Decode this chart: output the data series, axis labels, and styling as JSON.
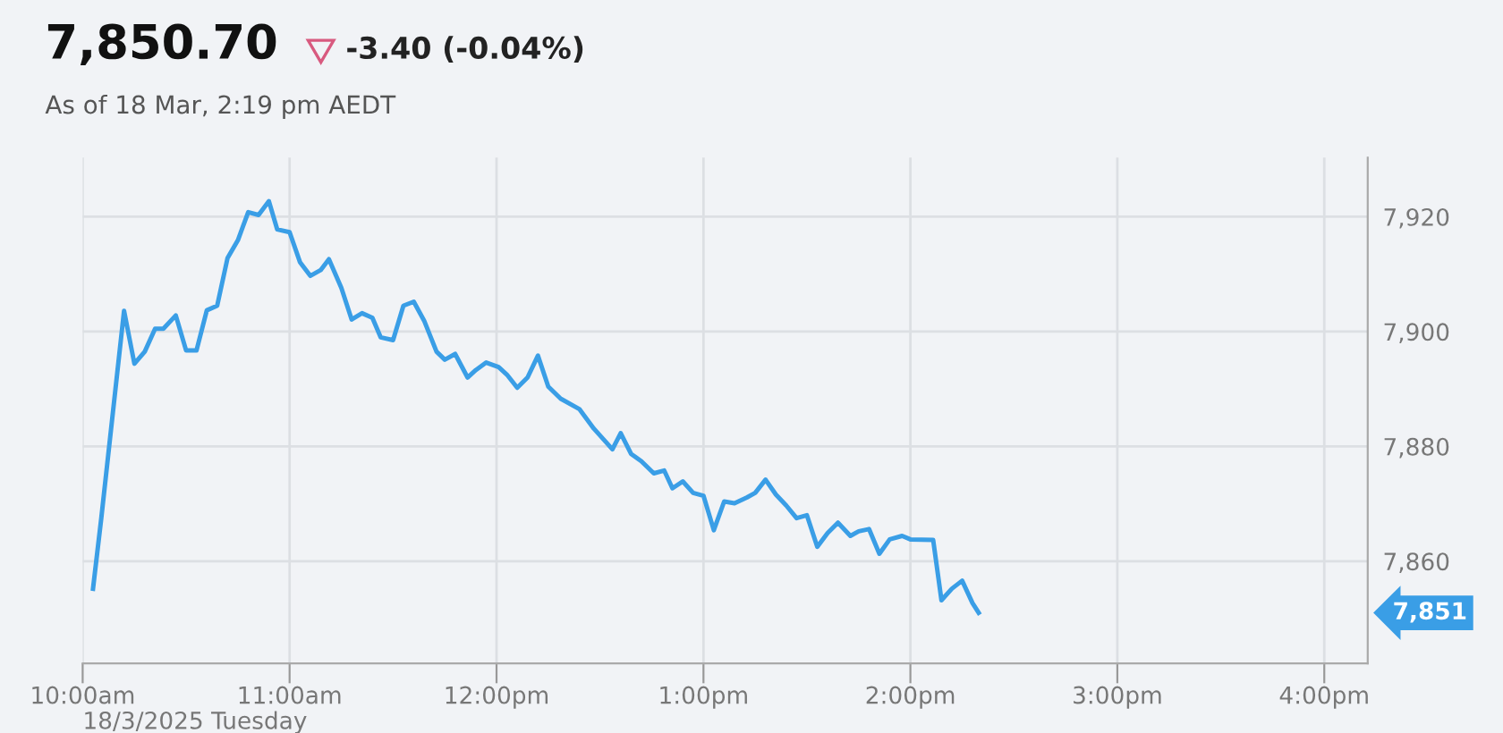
{
  "chart_data": {
    "type": "line",
    "title": "7,850.70",
    "subtitle": "-3.40 (-0.04%)",
    "annotations": [
      "As of 18 Mar, 2:19 pm AEDT",
      "7,851"
    ],
    "xlabel": "18/3/2025 Tuesday",
    "x": [
      10.05,
      10.09,
      10.2,
      10.25,
      10.3,
      10.35,
      10.39,
      10.45,
      10.5,
      10.55,
      10.6,
      10.65,
      10.7,
      10.75,
      10.8,
      10.85,
      10.9,
      10.94,
      11.0,
      11.05,
      11.1,
      11.15,
      11.19,
      11.25,
      11.3,
      11.35,
      11.4,
      11.44,
      11.5,
      11.55,
      11.6,
      11.65,
      11.71,
      11.75,
      11.8,
      11.86,
      11.9,
      11.95,
      12.01,
      12.05,
      12.1,
      12.15,
      12.2,
      12.25,
      12.31,
      12.4,
      12.47,
      12.56,
      12.6,
      12.65,
      12.7,
      12.76,
      12.81,
      12.85,
      12.9,
      12.95,
      13.0,
      13.05,
      13.1,
      13.15,
      13.21,
      13.25,
      13.3,
      13.35,
      13.4,
      13.45,
      13.5,
      13.55,
      13.6,
      13.65,
      13.71,
      13.75,
      13.8,
      13.85,
      13.9,
      13.96,
      14.0,
      14.11,
      14.15,
      14.2,
      14.25,
      14.3,
      14.33
    ],
    "series": [
      {
        "color": "#3a9ee6",
        "values": [
          7855.2,
          7867.5,
          7903.6,
          7894.4,
          7896.5,
          7900.5,
          7900.5,
          7902.8,
          7896.7,
          7896.7,
          7903.7,
          7904.5,
          7912.8,
          7915.9,
          7920.8,
          7920.3,
          7922.7,
          7917.8,
          7917.3,
          7912.1,
          7909.7,
          7910.7,
          7912.6,
          7907.6,
          7902.1,
          7903.2,
          7902.4,
          7899.0,
          7898.5,
          7904.5,
          7905.2,
          7901.9,
          7896.5,
          7895.1,
          7896.1,
          7892.0,
          7893.3,
          7894.6,
          7893.8,
          7892.5,
          7890.2,
          7892.0,
          7895.8,
          7890.4,
          7888.3,
          7886.5,
          7883.1,
          7879.5,
          7882.3,
          7878.7,
          7877.4,
          7875.3,
          7875.8,
          7872.7,
          7873.9,
          7871.9,
          7871.4,
          7865.4,
          7870.4,
          7870.1,
          7871.1,
          7871.9,
          7874.2,
          7871.6,
          7869.7,
          7867.5,
          7868.0,
          7862.5,
          7864.9,
          7866.7,
          7864.4,
          7865.2,
          7865.6,
          7861.3,
          7863.8,
          7864.4,
          7863.8,
          7863.7,
          7853.2,
          7855.2,
          7856.6,
          7852.7,
          7851.0
        ]
      }
    ],
    "xlim": [
      10.0,
      16.21
    ],
    "ylim": [
      7842.2,
      7930.3
    ],
    "xticks": [
      {
        "value": 10,
        "label": "10:00am"
      },
      {
        "value": 11,
        "label": "11:00am"
      },
      {
        "value": 12,
        "label": "12:00pm"
      },
      {
        "value": 13,
        "label": "1:00pm"
      },
      {
        "value": 14,
        "label": "2:00pm"
      },
      {
        "value": 15,
        "label": "3:00pm"
      },
      {
        "value": 16,
        "label": "4:00pm"
      }
    ],
    "yticks": [
      {
        "value": 7860,
        "label": "7,860"
      },
      {
        "value": 7880,
        "label": "7,880"
      },
      {
        "value": 7900,
        "label": "7,900"
      },
      {
        "value": 7920,
        "label": "7,920"
      }
    ],
    "grid": true,
    "legend": false,
    "marker": "none",
    "line_style": "solid"
  }
}
